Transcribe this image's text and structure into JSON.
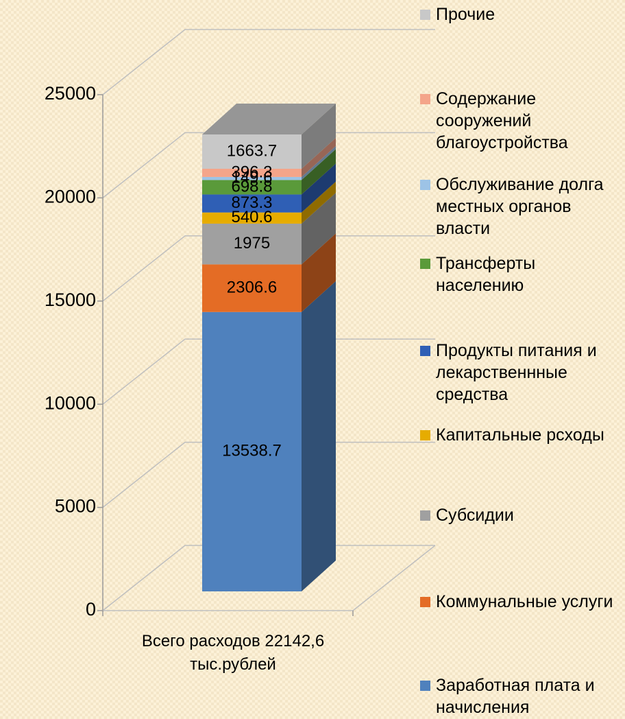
{
  "chart_data": {
    "type": "stacked-bar-3d",
    "categories": [
      "Всего расходов 22142,6 тыс.рублей"
    ],
    "series": [
      {
        "name": "Заработная плата и начисления",
        "color": "#4f81bd",
        "values": [
          13538.7
        ]
      },
      {
        "name": "Коммунальные услуги",
        "color": "#e46c25",
        "values": [
          2306.6
        ]
      },
      {
        "name": "Субсидии",
        "color": "#a0a0a0",
        "values": [
          1975
        ]
      },
      {
        "name": "Капитальные рсходы",
        "color": "#e6ac00",
        "values": [
          540.6
        ]
      },
      {
        "name": "Продукты питания и лекарственнные средства",
        "color": "#2f5fb5",
        "values": [
          873.3
        ]
      },
      {
        "name": "Трансферты населению",
        "color": "#5a9a3a",
        "values": [
          698.8
        ]
      },
      {
        "name": "Обслуживание долга местных органов власти",
        "color": "#9dc3e6",
        "values": [
          149.6
        ]
      },
      {
        "name": "Содержание сооружений благоустройства",
        "color": "#f4a58a",
        "values": [
          396.3
        ]
      },
      {
        "name": "Прочие",
        "color": "#c8c8c8",
        "values": [
          1663.7
        ]
      }
    ],
    "ylim": [
      0,
      25000
    ],
    "yticks": [
      0,
      5000,
      10000,
      15000,
      20000,
      25000
    ],
    "grid": true,
    "legend": "right"
  }
}
